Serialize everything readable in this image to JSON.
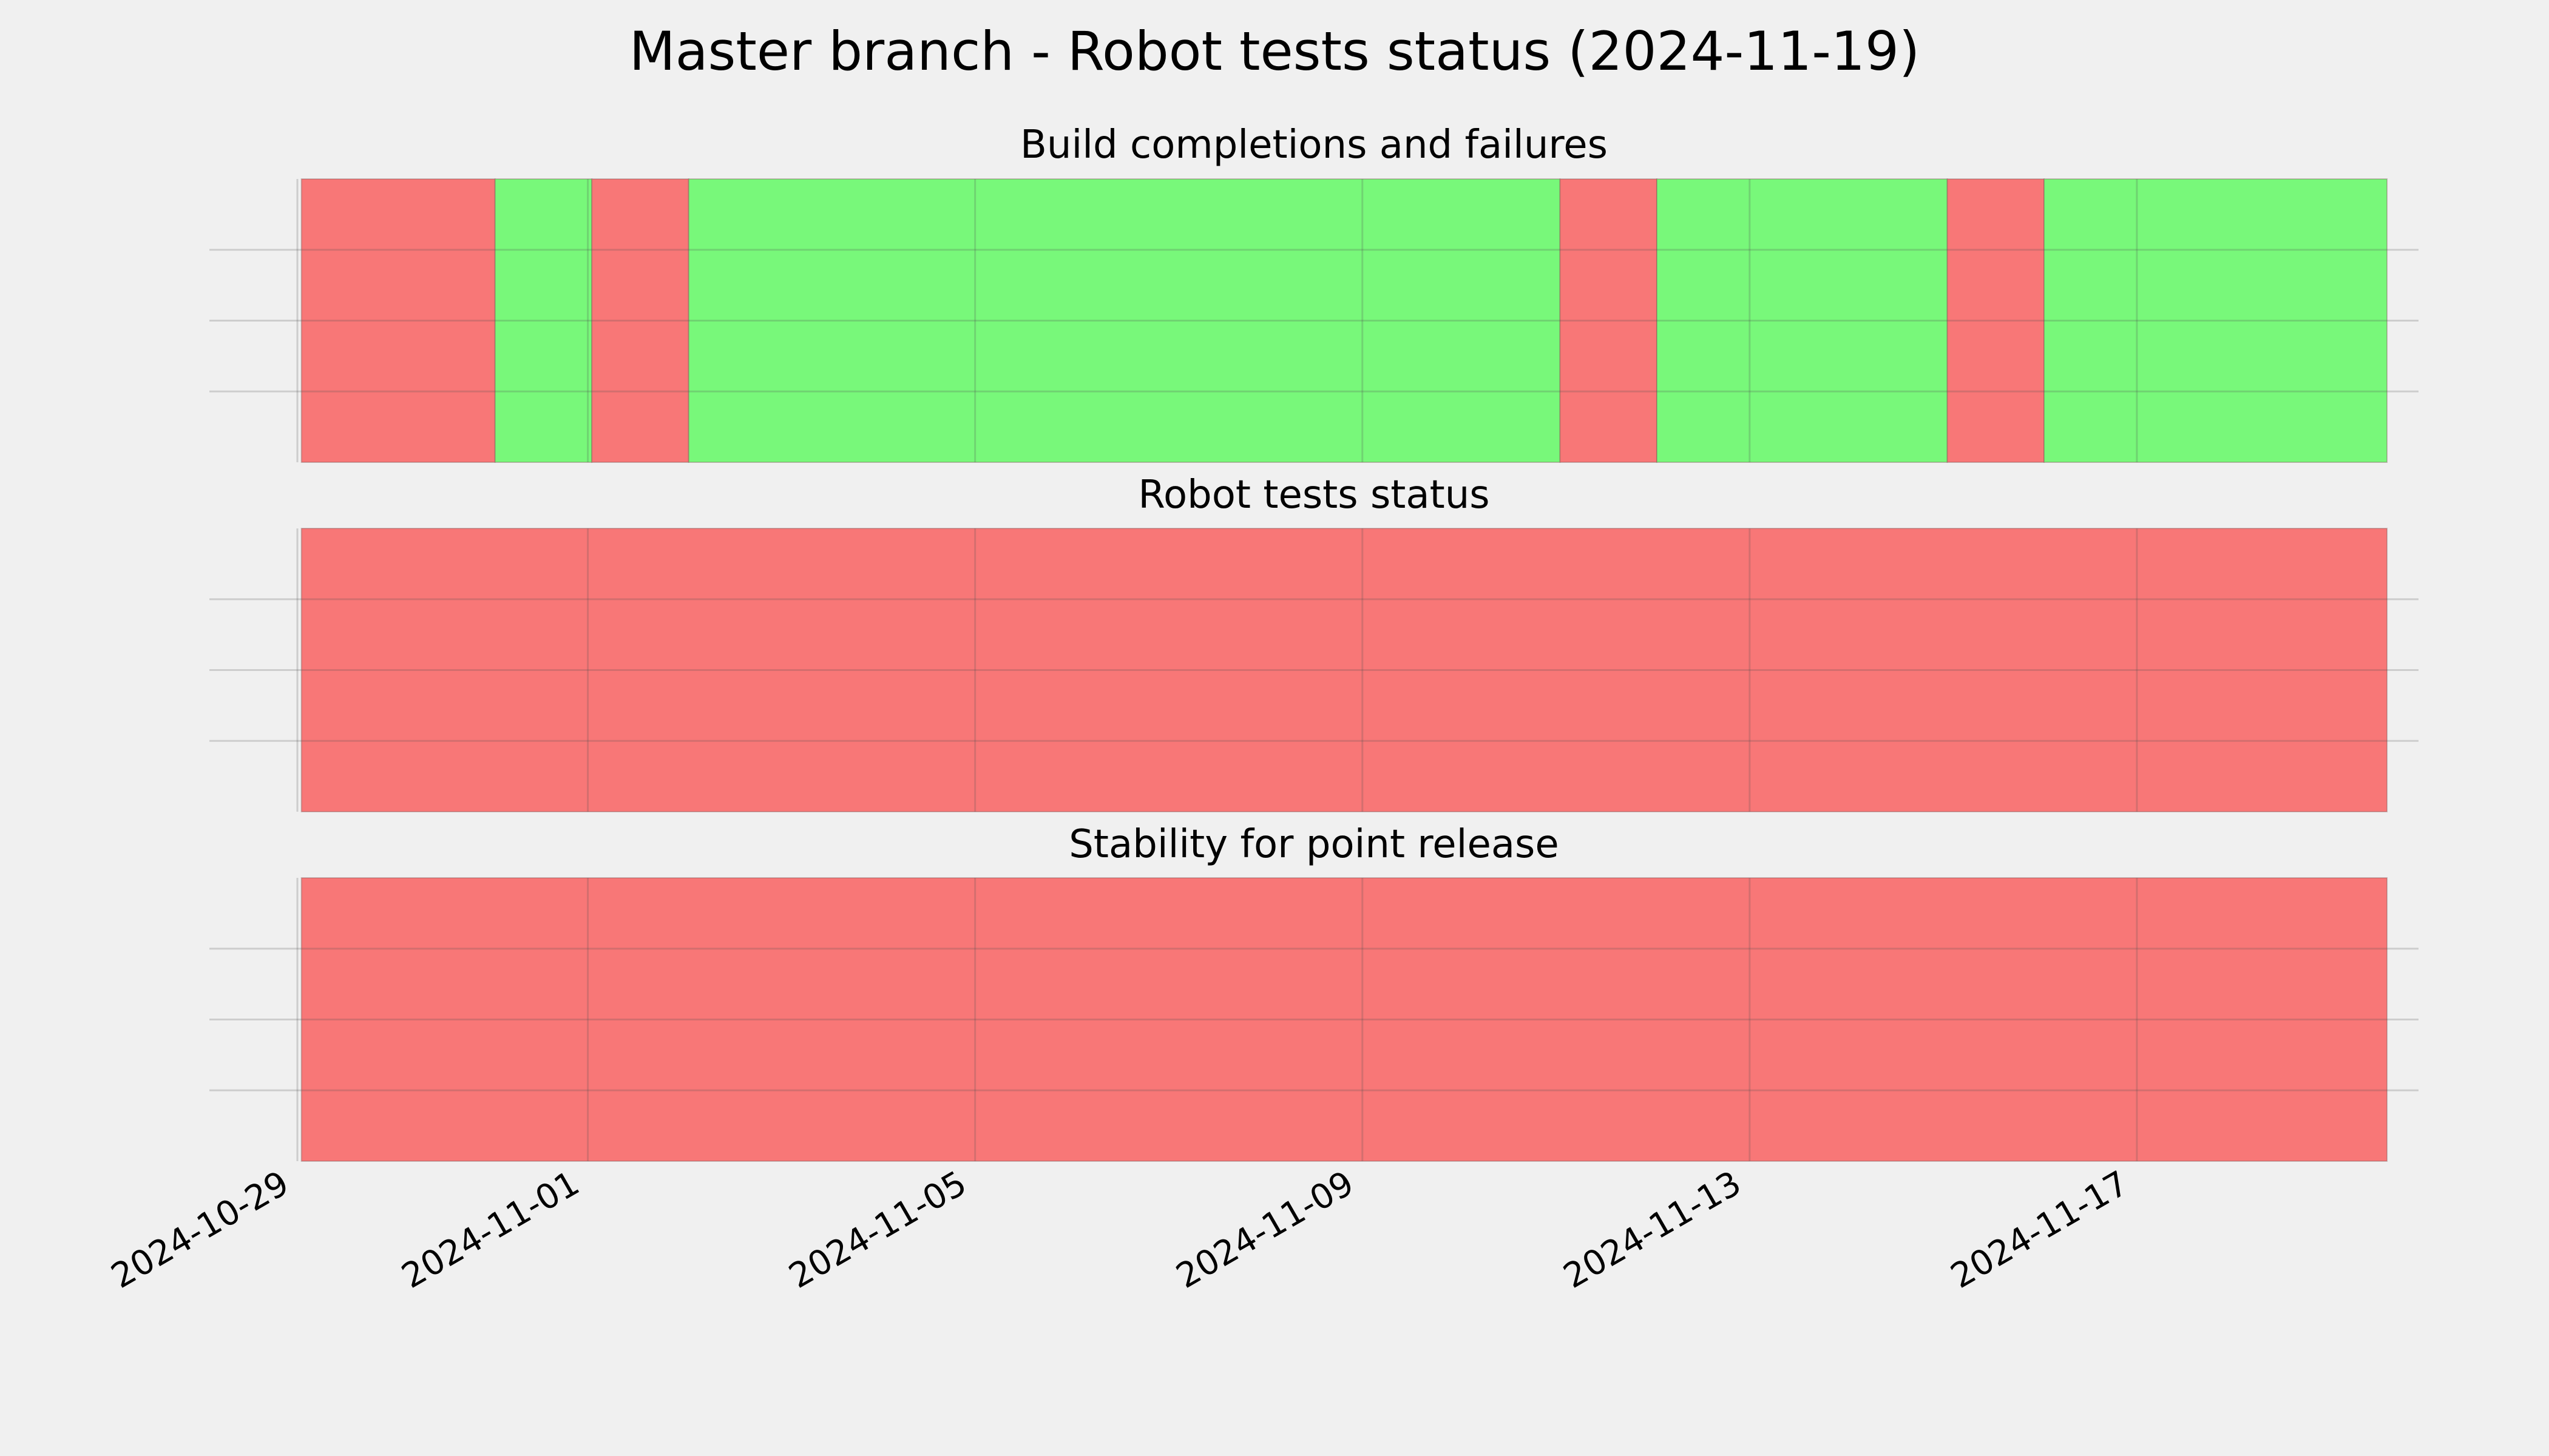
{
  "chart_data": {
    "type": "timeline",
    "title": "Master branch - Robot tests status (2024-11-19)",
    "x_range": [
      "2024-10-29",
      "2024-11-19"
    ],
    "x_ticks": [
      "2024-10-29",
      "2024-11-01",
      "2024-11-05",
      "2024-11-09",
      "2024-11-13",
      "2024-11-17"
    ],
    "status_colors": {
      "fail": "#f87777",
      "pass": "#78f87a"
    },
    "grid": true,
    "panels": [
      {
        "title": "Build completions and failures",
        "segments": [
          {
            "start": "2024-10-29T01:00",
            "end": "2024-10-31T01:00",
            "status": "fail"
          },
          {
            "start": "2024-10-31T01:00",
            "end": "2024-11-01T01:00",
            "status": "pass"
          },
          {
            "start": "2024-11-01T01:00",
            "end": "2024-11-02T01:00",
            "status": "fail"
          },
          {
            "start": "2024-11-02T01:00",
            "end": "2024-11-11T01:00",
            "status": "pass"
          },
          {
            "start": "2024-11-11T01:00",
            "end": "2024-11-12T01:00",
            "status": "fail"
          },
          {
            "start": "2024-11-12T01:00",
            "end": "2024-11-15T01:00",
            "status": "pass"
          },
          {
            "start": "2024-11-15T01:00",
            "end": "2024-11-16T01:00",
            "status": "fail"
          },
          {
            "start": "2024-11-16T01:00",
            "end": "2024-11-19T14:00",
            "status": "pass"
          }
        ]
      },
      {
        "title": "Robot tests status",
        "segments": [
          {
            "start": "2024-10-29T01:00",
            "end": "2024-11-19T14:00",
            "status": "fail"
          }
        ]
      },
      {
        "title": "Stability for point release",
        "segments": [
          {
            "start": "2024-10-29T01:00",
            "end": "2024-11-19T14:00",
            "status": "fail"
          }
        ]
      }
    ]
  }
}
